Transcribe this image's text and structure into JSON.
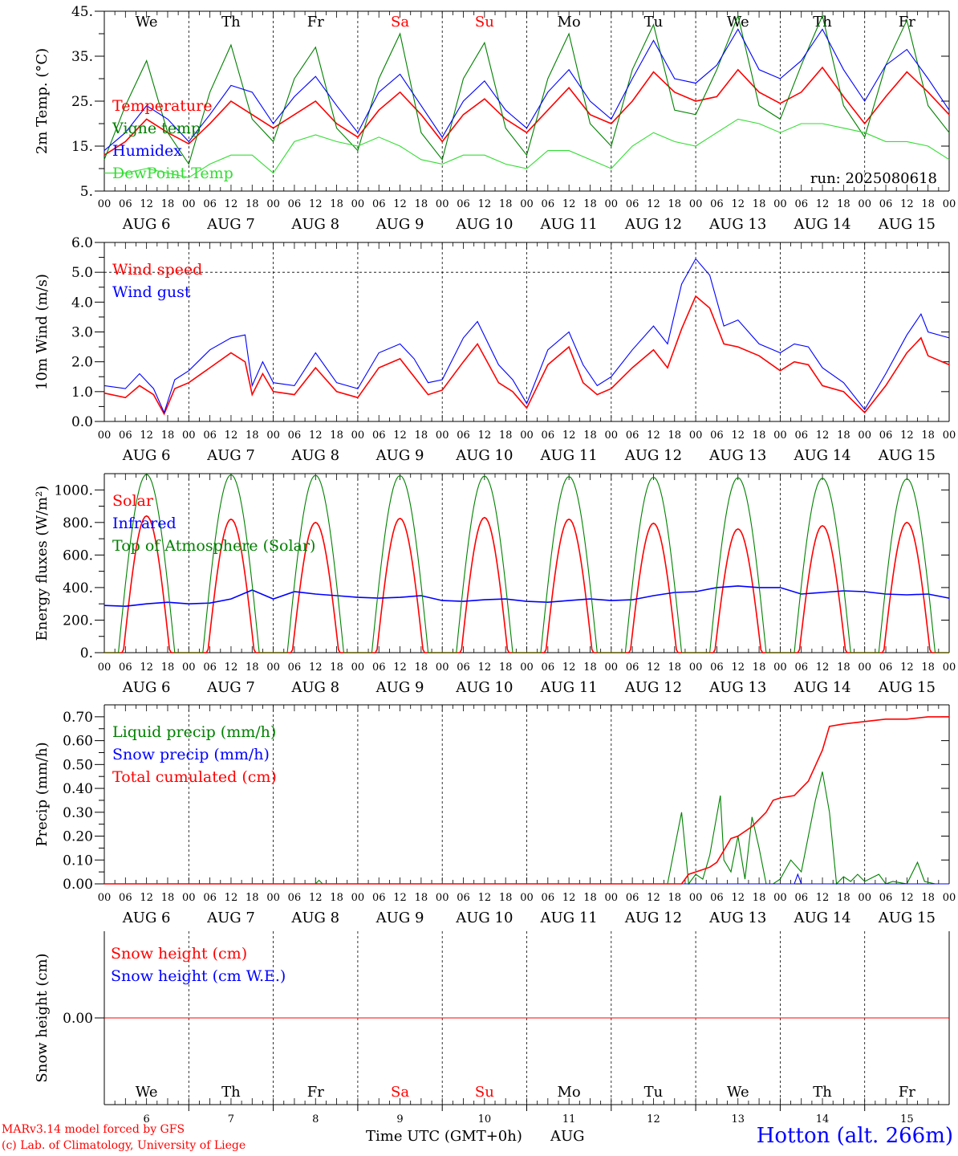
{
  "chart_data": [
    {
      "type": "line",
      "id": "temp",
      "ylabel": "2m Temp. (°C)",
      "ylim": [
        5,
        45
      ],
      "yticks": [
        5,
        15,
        25,
        35,
        45
      ],
      "ytick_labels": [
        "5.",
        "15.",
        "25.",
        "35.",
        "45."
      ],
      "annotation": "run: 2025080618",
      "series": [
        {
          "name": "Temperature",
          "color": "#ff0000",
          "x": [
            0,
            6,
            12,
            18,
            24,
            30,
            36,
            42,
            48,
            54,
            60,
            66,
            72,
            78,
            84,
            90,
            96,
            102,
            108,
            114,
            120,
            126,
            132,
            138,
            144,
            150,
            156,
            162,
            168,
            174,
            180,
            186,
            192,
            198,
            204,
            210,
            216,
            222,
            228,
            234,
            240
          ],
          "y": [
            13,
            16,
            21,
            18,
            15.5,
            20,
            25,
            22,
            19,
            22,
            25,
            20,
            17,
            23,
            27,
            22,
            16,
            22,
            25.5,
            21,
            18,
            23,
            28,
            22,
            20,
            25,
            31.5,
            27,
            25,
            26,
            32,
            27,
            24.5,
            27,
            32.5,
            26,
            20,
            26,
            31.5,
            27,
            22
          ]
        },
        {
          "name": "Vigne temp",
          "color": "#008000",
          "x": [
            0,
            6,
            12,
            18,
            24,
            30,
            36,
            42,
            48,
            54,
            60,
            66,
            72,
            78,
            84,
            90,
            96,
            102,
            108,
            114,
            120,
            126,
            132,
            138,
            144,
            150,
            156,
            162,
            168,
            174,
            180,
            186,
            192,
            198,
            204,
            210,
            216,
            222,
            228,
            234,
            240
          ],
          "y": [
            12,
            24,
            34,
            18,
            11,
            27,
            37.5,
            21,
            16,
            30,
            37,
            19,
            14,
            30,
            40,
            18,
            12,
            30,
            38,
            19,
            13,
            30,
            40,
            20,
            15,
            32,
            42,
            23,
            22,
            32,
            44,
            24,
            21,
            33,
            44,
            24,
            17,
            33,
            43,
            24,
            18
          ]
        },
        {
          "name": "Humidex",
          "color": "#0000ff",
          "x": [
            0,
            6,
            12,
            18,
            24,
            30,
            36,
            42,
            48,
            54,
            60,
            66,
            72,
            78,
            84,
            90,
            96,
            102,
            108,
            114,
            120,
            126,
            132,
            138,
            144,
            150,
            156,
            162,
            168,
            174,
            180,
            186,
            192,
            198,
            204,
            210,
            216,
            222,
            228,
            234,
            240
          ],
          "y": [
            14,
            18,
            24,
            21,
            16,
            22,
            28.5,
            27,
            20,
            26,
            30.5,
            24,
            18,
            27,
            31,
            24,
            17,
            25,
            29.5,
            23,
            19,
            27,
            32,
            25,
            21,
            30,
            38.5,
            30,
            29,
            33,
            41,
            32,
            30,
            34,
            41,
            32,
            25,
            33,
            36.5,
            30,
            23
          ]
        },
        {
          "name": "DewPoint Temp",
          "color": "#33dd33",
          "x": [
            0,
            6,
            12,
            18,
            24,
            30,
            36,
            42,
            48,
            54,
            60,
            66,
            72,
            78,
            84,
            90,
            96,
            102,
            108,
            114,
            120,
            126,
            132,
            138,
            144,
            150,
            156,
            162,
            168,
            174,
            180,
            186,
            192,
            198,
            204,
            210,
            216,
            222,
            228,
            234,
            240
          ],
          "y": [
            9,
            9,
            10,
            9,
            8,
            11,
            13,
            13,
            9,
            16,
            17.5,
            16,
            15,
            17,
            15,
            12,
            11,
            13,
            13,
            11,
            10,
            14,
            14,
            12,
            10,
            15,
            18,
            16,
            15,
            18,
            21,
            20,
            18,
            20,
            20,
            19,
            18,
            16,
            16,
            15,
            12
          ]
        }
      ]
    },
    {
      "type": "line",
      "id": "wind",
      "ylabel": "10m Wind (m/s)",
      "ylim": [
        0,
        6
      ],
      "yticks": [
        0,
        1,
        2,
        3,
        4,
        5,
        6
      ],
      "ytick_labels": [
        "0.0",
        "1.0",
        "2.0",
        "3.0",
        "4.0",
        "5.0",
        "6.0"
      ],
      "reference_line": 5,
      "series": [
        {
          "name": "Wind speed",
          "color": "#ff0000",
          "x": [
            0,
            6,
            10,
            14,
            17,
            20,
            24,
            30,
            36,
            40,
            42,
            45,
            48,
            54,
            60,
            66,
            72,
            78,
            84,
            88,
            92,
            96,
            102,
            106,
            112,
            116,
            120,
            126,
            132,
            136,
            140,
            144,
            150,
            156,
            160,
            164,
            168,
            172,
            176,
            180,
            186,
            192,
            196,
            200,
            204,
            210,
            216,
            222,
            228,
            232,
            234,
            240
          ],
          "y": [
            0.95,
            0.8,
            1.2,
            0.9,
            0.25,
            1.1,
            1.3,
            1.8,
            2.3,
            2.0,
            0.9,
            1.6,
            1.0,
            0.9,
            1.8,
            1.0,
            0.8,
            1.8,
            2.1,
            1.5,
            0.9,
            1.05,
            2.0,
            2.6,
            1.3,
            1.0,
            0.45,
            1.9,
            2.5,
            1.3,
            0.9,
            1.1,
            1.8,
            2.4,
            1.8,
            3.1,
            4.2,
            3.8,
            2.6,
            2.5,
            2.2,
            1.7,
            2.0,
            1.9,
            1.2,
            1.0,
            0.3,
            1.2,
            2.3,
            2.8,
            2.2,
            1.9
          ]
        },
        {
          "name": "Wind gust",
          "color": "#0000ff",
          "x": [
            0,
            6,
            10,
            14,
            17,
            20,
            24,
            30,
            36,
            40,
            42,
            45,
            48,
            54,
            60,
            66,
            72,
            78,
            84,
            88,
            92,
            96,
            102,
            106,
            112,
            116,
            120,
            126,
            132,
            136,
            140,
            144,
            150,
            156,
            160,
            164,
            168,
            172,
            176,
            180,
            186,
            192,
            196,
            200,
            204,
            210,
            216,
            222,
            228,
            232,
            234,
            240
          ],
          "y": [
            1.2,
            1.1,
            1.6,
            1.1,
            0.3,
            1.4,
            1.7,
            2.4,
            2.8,
            2.9,
            1.2,
            2.0,
            1.3,
            1.2,
            2.3,
            1.3,
            1.1,
            2.3,
            2.6,
            2.1,
            1.3,
            1.4,
            2.8,
            3.35,
            1.9,
            1.4,
            0.6,
            2.4,
            3.0,
            1.9,
            1.2,
            1.5,
            2.4,
            3.2,
            2.6,
            4.6,
            5.45,
            4.9,
            3.2,
            3.4,
            2.6,
            2.3,
            2.6,
            2.5,
            1.8,
            1.3,
            0.4,
            1.6,
            2.9,
            3.6,
            3.0,
            2.8
          ]
        }
      ]
    },
    {
      "type": "line",
      "id": "energy",
      "ylabel": "Energy fluxes (W/m²)",
      "ylim": [
        0,
        1100
      ],
      "yticks": [
        0,
        200,
        400,
        600,
        800,
        1000
      ],
      "ytick_labels": [
        "0.",
        "200.",
        "400.",
        "600.",
        "800.",
        "1000."
      ],
      "series": [
        {
          "name": "Solar",
          "color": "#ff0000",
          "peaks": [
            840,
            820,
            800,
            825,
            830,
            820,
            795,
            760,
            780,
            800
          ]
        },
        {
          "name": "Infrared",
          "color": "#0000ff",
          "x": [
            0,
            6,
            12,
            18,
            24,
            30,
            36,
            42,
            48,
            54,
            60,
            66,
            72,
            78,
            84,
            90,
            96,
            102,
            108,
            114,
            120,
            126,
            132,
            138,
            144,
            150,
            156,
            162,
            168,
            174,
            180,
            186,
            192,
            198,
            204,
            210,
            216,
            222,
            228,
            234,
            240
          ],
          "y": [
            290,
            285,
            300,
            310,
            300,
            305,
            330,
            385,
            330,
            375,
            360,
            350,
            340,
            335,
            340,
            350,
            320,
            315,
            325,
            330,
            315,
            310,
            320,
            330,
            320,
            325,
            350,
            370,
            375,
            400,
            410,
            400,
            400,
            360,
            370,
            380,
            375,
            360,
            355,
            360,
            335
          ]
        },
        {
          "name": "Top of Atmosphere (Solar)",
          "color": "#008000",
          "peaks": [
            1095,
            1093,
            1090,
            1088,
            1085,
            1082,
            1078,
            1075,
            1072,
            1068
          ]
        }
      ]
    },
    {
      "type": "line",
      "id": "precip",
      "ylabel": "Precip (mm/h)",
      "ylim": [
        0,
        0.75
      ],
      "yticks": [
        0,
        0.1,
        0.2,
        0.3,
        0.4,
        0.5,
        0.6,
        0.7
      ],
      "ytick_labels": [
        "0.00",
        "0.10",
        "0.20",
        "0.30",
        "0.40",
        "0.50",
        "0.60",
        "0.70"
      ],
      "series": [
        {
          "name": "Liquid precip (mm/h)",
          "color": "#008000",
          "x": [
            0,
            60,
            61,
            62,
            160,
            164,
            166,
            168,
            170,
            172,
            175,
            176,
            178,
            180,
            182,
            184,
            186,
            188,
            190,
            192,
            195,
            198,
            200,
            202,
            204,
            206,
            208,
            210,
            212,
            214,
            216,
            220,
            222,
            224,
            228,
            231,
            233,
            236,
            240
          ],
          "y": [
            0,
            0,
            0.015,
            0,
            0,
            0.3,
            0,
            0.04,
            0.02,
            0.12,
            0.37,
            0.1,
            0.05,
            0.2,
            0.02,
            0.28,
            0.15,
            0,
            0,
            0.02,
            0.1,
            0.05,
            0.2,
            0.35,
            0.47,
            0.3,
            0,
            0.03,
            0.01,
            0.04,
            0.01,
            0.04,
            0,
            0.01,
            0,
            0.09,
            0.01,
            0,
            0
          ]
        },
        {
          "name": "Snow precip (mm/h)",
          "color": "#0000ff",
          "x": [
            0,
            196,
            197,
            198,
            240
          ],
          "y": [
            0,
            0,
            0.04,
            0,
            0
          ]
        },
        {
          "name": "Total cumulated (cm)",
          "color": "#ff0000",
          "x": [
            0,
            164,
            166,
            170,
            172,
            174,
            176,
            178,
            180,
            184,
            188,
            190,
            192,
            196,
            198,
            200,
            204,
            206,
            210,
            216,
            222,
            228,
            234,
            240
          ],
          "y": [
            0,
            0,
            0.04,
            0.06,
            0.07,
            0.09,
            0.14,
            0.19,
            0.2,
            0.24,
            0.3,
            0.35,
            0.36,
            0.37,
            0.4,
            0.43,
            0.56,
            0.66,
            0.67,
            0.68,
            0.69,
            0.69,
            0.7,
            0.7
          ]
        }
      ]
    },
    {
      "type": "line",
      "id": "snow",
      "ylabel": "Snow height (cm)",
      "ylim": [
        -1,
        1
      ],
      "yticks": [
        0
      ],
      "ytick_labels": [
        "0.00"
      ],
      "series": [
        {
          "name": "Snow height (cm)",
          "color": "#ff0000",
          "x": [
            0,
            240
          ],
          "y": [
            0,
            0
          ]
        },
        {
          "name": "Snow height (cm W.E.)",
          "color": "#0000ff",
          "x": [],
          "y": []
        }
      ]
    }
  ],
  "time_axis": {
    "hour_labels": [
      "00",
      "06",
      "12",
      "18"
    ],
    "date_labels": [
      "AUG  6",
      "AUG  7",
      "AUG  8",
      "AUG  9",
      "AUG 10",
      "AUG 11",
      "AUG 12",
      "AUG 13",
      "AUG 14",
      "AUG 15"
    ],
    "weekdays": [
      "We",
      "Th",
      "Fr",
      "Sa",
      "Su",
      "Mo",
      "Tu",
      "We",
      "Th",
      "Fr"
    ],
    "weekday_colors": [
      "#000000",
      "#000000",
      "#000000",
      "#ff0000",
      "#ff0000",
      "#000000",
      "#000000",
      "#000000",
      "#000000",
      "#000000"
    ],
    "day_numbers": [
      "6",
      "7",
      "8",
      "9",
      "10",
      "11",
      "12",
      "13",
      "14",
      "15"
    ],
    "xlabel": "Time UTC (GMT+0h)",
    "month": "AUG"
  },
  "footer": {
    "model_line": "MARv3.14 model forced by GFS",
    "credit_line": "(c) Lab. of Climatology, University of Liege",
    "station": "Hotton (alt. 266m)",
    "model_color": "#ff0000",
    "station_color": "#0000ff"
  }
}
